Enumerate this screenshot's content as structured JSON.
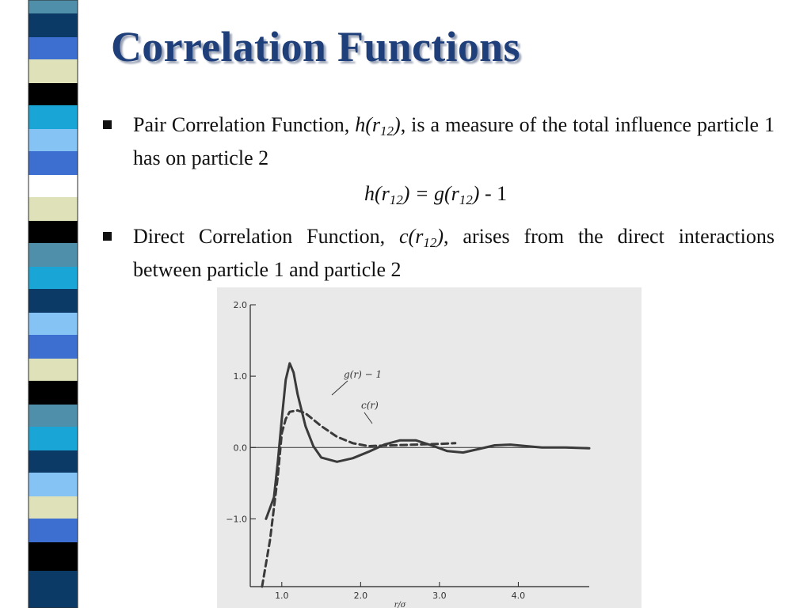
{
  "slide": {
    "title": "Correlation Functions",
    "bullets": [
      {
        "lead": "Pair Correlation Function, ",
        "symbol": "h(r",
        "sub": "12",
        "close": ")",
        "rest": ", is a measure of the total influence particle 1 has on particle 2"
      },
      {
        "lead": "Direct Correlation Function, ",
        "symbol": "c(r",
        "sub": "12",
        "close": ")",
        "rest": ", arises from the direct interactions between particle 1 and particle 2"
      }
    ],
    "formula": {
      "lhs": "h(r",
      "lhs_sub": "12",
      "mid": ") = g(r",
      "rhs_sub": "12",
      "end": ")",
      "tail": " - 1"
    }
  },
  "colors": {
    "title": "#1f3f7a",
    "stripe": [
      "#4f8fa9",
      "#0c3a66",
      "#3d6fd0",
      "#dfe1b9",
      "#000000",
      "#19a5d6",
      "#86c3f5",
      "#ffffff"
    ]
  },
  "chart_data": {
    "type": "line",
    "xlabel": "r/σ",
    "ylabel": "",
    "xlim": [
      0.6,
      4.9
    ],
    "ylim": [
      -1.95,
      2.0
    ],
    "x_ticks": [
      "1.0",
      "2.0",
      "3.0",
      "4.0"
    ],
    "y_ticks": [
      "2.0",
      "1.0",
      "0.0",
      "−1.0"
    ],
    "series": [
      {
        "name": "g(r) − 1",
        "style": "solid",
        "points": [
          [
            0.8,
            -1.0
          ],
          [
            0.9,
            -0.7
          ],
          [
            0.95,
            -0.2
          ],
          [
            1.0,
            0.4
          ],
          [
            1.05,
            0.95
          ],
          [
            1.1,
            1.18
          ],
          [
            1.15,
            1.05
          ],
          [
            1.2,
            0.75
          ],
          [
            1.3,
            0.3
          ],
          [
            1.4,
            0.02
          ],
          [
            1.5,
            -0.14
          ],
          [
            1.7,
            -0.2
          ],
          [
            1.9,
            -0.15
          ],
          [
            2.1,
            -0.06
          ],
          [
            2.3,
            0.04
          ],
          [
            2.5,
            0.1
          ],
          [
            2.7,
            0.1
          ],
          [
            2.9,
            0.03
          ],
          [
            3.1,
            -0.05
          ],
          [
            3.3,
            -0.07
          ],
          [
            3.5,
            -0.02
          ],
          [
            3.7,
            0.03
          ],
          [
            3.9,
            0.04
          ],
          [
            4.1,
            0.02
          ],
          [
            4.3,
            0.0
          ],
          [
            4.6,
            0.0
          ],
          [
            4.9,
            -0.01
          ]
        ]
      },
      {
        "name": "c(r)",
        "style": "dashed",
        "points": [
          [
            0.75,
            -1.95
          ],
          [
            0.85,
            -1.3
          ],
          [
            0.95,
            -0.4
          ],
          [
            1.0,
            0.2
          ],
          [
            1.05,
            0.4
          ],
          [
            1.1,
            0.5
          ],
          [
            1.2,
            0.52
          ],
          [
            1.3,
            0.48
          ],
          [
            1.5,
            0.3
          ],
          [
            1.7,
            0.15
          ],
          [
            1.9,
            0.06
          ],
          [
            2.1,
            0.02
          ],
          [
            2.4,
            0.03
          ],
          [
            2.7,
            0.04
          ],
          [
            3.0,
            0.05
          ],
          [
            3.2,
            0.06
          ]
        ]
      }
    ]
  }
}
